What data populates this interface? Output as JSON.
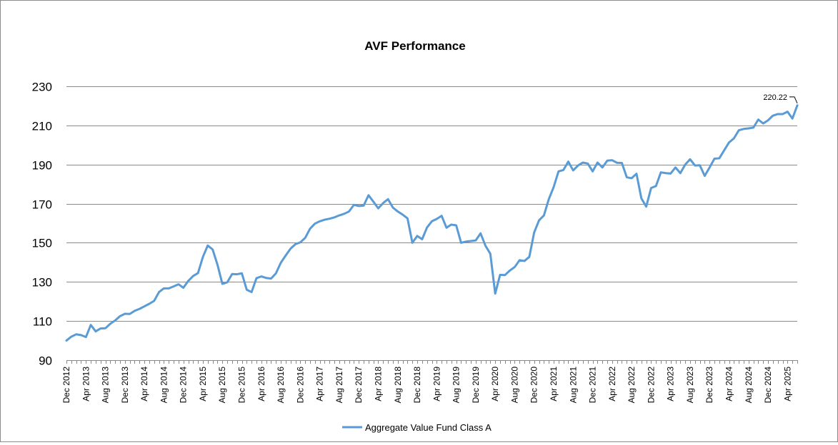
{
  "chart_data": {
    "type": "line",
    "title": "AVF Performance",
    "xlabel": "",
    "ylabel": "",
    "ylim": [
      90,
      230
    ],
    "yticks": [
      90,
      110,
      130,
      150,
      170,
      190,
      210,
      230
    ],
    "grid": "horizontal",
    "legend_position": "bottom",
    "x_tick_labels": [
      "Dec 2012",
      "Apr 2013",
      "Aug 2013",
      "Dec 2013",
      "Apr 2014",
      "Aug 2014",
      "Dec 2014",
      "Apr 2015",
      "Aug 2015",
      "Dec 2015",
      "Apr 2016",
      "Aug 2016",
      "Dec 2016",
      "Apr 2017",
      "Aug 2017",
      "Dec 2017",
      "Apr 2018",
      "Aug 2018",
      "Dec 2018",
      "Apr 2019",
      "Aug 2019",
      "Dec 2019",
      "Apr 2020",
      "Aug 2020",
      "Dec 2020",
      "Apr 2021",
      "Aug 2021",
      "Dec 2021",
      "Apr 2022",
      "Aug 2022",
      "Dec 2022",
      "Apr 2023",
      "Aug 2023",
      "Dec 2023",
      "Apr 2024",
      "Aug 2024",
      "Dec 2024",
      "Apr 2025"
    ],
    "x_start": "Dec 2012",
    "x_end": "May 2025",
    "annotation": {
      "text": "220.22",
      "target": "last"
    },
    "series": [
      {
        "name": "Aggregate Value Fund Class A",
        "color": "#5b9bd5",
        "values": [
          100.0,
          102.0,
          103.2,
          102.8,
          101.8,
          108.0,
          104.7,
          106.2,
          106.3,
          108.6,
          110.3,
          112.5,
          113.7,
          113.6,
          115.2,
          116.2,
          117.5,
          118.8,
          120.3,
          124.8,
          126.7,
          126.7,
          127.7,
          128.8,
          127.0,
          130.5,
          133.0,
          134.5,
          142.7,
          148.6,
          146.6,
          138.8,
          129.0,
          129.8,
          134.0,
          133.9,
          134.4,
          126.0,
          124.8,
          131.9,
          132.8,
          132.0,
          131.7,
          134.4,
          139.8,
          143.5,
          147.0,
          149.3,
          150.2,
          152.5,
          157.2,
          159.8,
          161.0,
          161.8,
          162.3,
          163.0,
          164.0,
          164.8,
          166.0,
          169.4,
          168.8,
          169.0,
          174.3,
          171.0,
          167.6,
          170.3,
          172.3,
          168.0,
          166.0,
          164.4,
          162.5,
          150.0,
          153.5,
          151.8,
          157.8,
          161.0,
          162.2,
          163.8,
          157.7,
          159.3,
          158.9,
          150.0,
          150.6,
          150.9,
          151.2,
          154.8,
          148.5,
          144.4,
          124.0,
          133.6,
          133.5,
          135.8,
          137.6,
          141.1,
          140.7,
          142.8,
          155.3,
          161.5,
          164.0,
          172.3,
          178.5,
          186.5,
          187.2,
          191.5,
          187.0,
          189.5,
          191.0,
          190.5,
          186.5,
          191.0,
          188.5,
          192.0,
          192.2,
          190.9,
          190.8,
          183.5,
          183.0,
          185.3,
          172.7,
          168.5,
          178.0,
          179.0,
          186.0,
          185.6,
          185.4,
          188.5,
          185.6,
          190.0,
          192.7,
          189.5,
          189.6,
          184.2,
          188.5,
          193.0,
          193.2,
          197.3,
          201.3,
          203.4,
          207.5,
          208.2,
          208.5,
          208.9,
          213.0,
          211.0,
          212.6,
          215.0,
          215.8,
          215.8,
          217.0,
          213.5,
          220.22
        ]
      }
    ]
  }
}
